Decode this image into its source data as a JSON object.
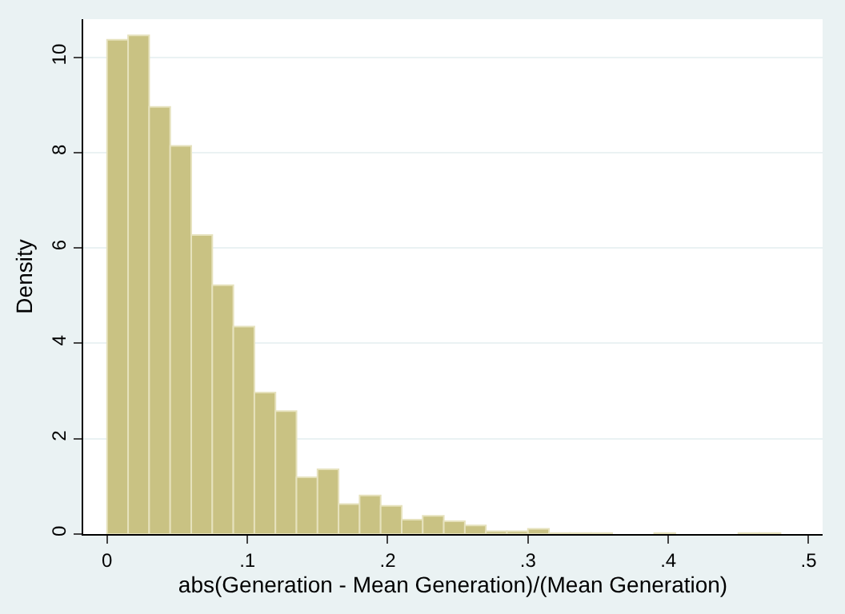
{
  "chart_data": {
    "type": "histogram",
    "xlabel": "abs(Generation - Mean Generation)/(Mean Generation)",
    "ylabel": "Density",
    "bins": [
      0,
      0.015,
      0.03,
      0.045,
      0.06,
      0.075,
      0.09,
      0.105,
      0.12,
      0.135,
      0.15,
      0.165,
      0.18,
      0.195,
      0.21,
      0.225,
      0.24,
      0.255,
      0.27,
      0.285,
      0.3,
      0.315,
      0.33,
      0.345,
      0.36,
      0.375,
      0.39,
      0.405,
      0.42,
      0.435,
      0.45,
      0.465,
      0.48
    ],
    "values": [
      10.37,
      10.46,
      8.96,
      8.14,
      6.27,
      5.22,
      4.35,
      2.97,
      2.58,
      1.19,
      1.36,
      0.63,
      0.81,
      0.59,
      0.3,
      0.38,
      0.27,
      0.18,
      0.06,
      0.06,
      0.11,
      0.02,
      0.02,
      0.02,
      0,
      0,
      0.02,
      0,
      0,
      0,
      0.02,
      0.02
    ],
    "color": "#c9c283",
    "xlim": [
      -0.017,
      0.51
    ],
    "ylim": [
      0,
      10.8
    ],
    "xticks": [
      0,
      {
        "value": 0.1,
        "label": ".1"
      },
      {
        "value": 0.2,
        "label": ".2"
      },
      {
        "value": 0.3,
        "label": ".3"
      },
      {
        "value": 0.4,
        "label": ".4"
      },
      {
        "value": 0.5,
        "label": ".5"
      }
    ],
    "yticks": [
      0,
      2,
      4,
      6,
      8,
      10
    ],
    "grid": "y"
  }
}
